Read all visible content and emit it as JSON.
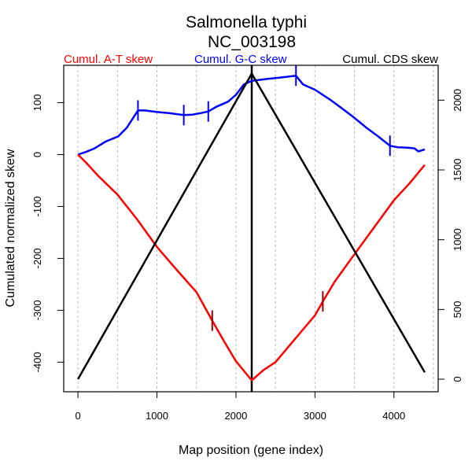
{
  "chart_data": {
    "type": "line",
    "title": "Salmonella typhi",
    "subtitle": "NC_003198",
    "xlabel": "Map position (gene index)",
    "ylabel": "Cumulated normalized skew",
    "ylabel_right": "",
    "xlim": [
      -180,
      4560
    ],
    "ylim": [
      -457,
      172
    ],
    "ylim_right": [
      -90,
      2250
    ],
    "x_ticks": [
      0,
      1000,
      2000,
      3000,
      4000
    ],
    "x_tick_labels": [
      "0",
      "1000",
      "2000",
      "3000",
      "4000"
    ],
    "y_ticks": [
      100,
      0,
      -100,
      -200,
      -300,
      -400
    ],
    "y_tick_labels": [
      "100",
      "0",
      "-100",
      "-200",
      "-300",
      "-400"
    ],
    "y_right_ticks": [
      0,
      500,
      1000,
      1500,
      2000
    ],
    "y_right_tick_labels": [
      "0",
      "500",
      "1000",
      "1500",
      "2000"
    ],
    "x_gridlines": [
      0,
      500,
      1000,
      1500,
      2000,
      2500,
      3000,
      3500,
      4000,
      4500
    ],
    "grid": "vertical dotted",
    "origin_line_x": 2200,
    "legend": [
      {
        "label": "Cumul. A-T skew",
        "color": "#ff0000",
        "position": "top-left"
      },
      {
        "label": "Cumul. G-C skew",
        "color": "#0000ff",
        "position": "top-center"
      },
      {
        "label": "Cumul. CDS skew",
        "color": "#000000",
        "position": "top-right"
      }
    ],
    "series": [
      {
        "name": "Cumul. G-C skew",
        "axis": "left",
        "color": "#0000ff",
        "x": [
          0,
          100,
          210,
          350,
          510,
          620,
          760,
          850,
          1000,
          1150,
          1340,
          1450,
          1560,
          1650,
          1750,
          1900,
          2000,
          2100,
          2200,
          2300,
          2400,
          2550,
          2760,
          2850,
          3000,
          3200,
          3350,
          3490,
          3650,
          3800,
          3950,
          4050,
          4190,
          4260,
          4310,
          4390
        ],
        "y": [
          0,
          5,
          12,
          25,
          35,
          52,
          85,
          85,
          82,
          80,
          76,
          77,
          80,
          83,
          92,
          102,
          115,
          135,
          142,
          144,
          146,
          148,
          152,
          135,
          125,
          105,
          88,
          72,
          52,
          35,
          17,
          14,
          13,
          12,
          6,
          10
        ]
      },
      {
        "name": "Cumul. A-T skew",
        "axis": "left",
        "color": "#ff0000",
        "x": [
          0,
          100,
          250,
          500,
          750,
          1000,
          1250,
          1500,
          1700,
          1850,
          2000,
          2200,
          2350,
          2500,
          2750,
          3000,
          3100,
          3250,
          3500,
          3750,
          4000,
          4200,
          4390
        ],
        "y": [
          0,
          -15,
          -40,
          -77,
          -125,
          -178,
          -222,
          -265,
          -320,
          -360,
          -398,
          -435,
          -415,
          -400,
          -355,
          -310,
          -283,
          -245,
          -192,
          -140,
          -88,
          -55,
          -20
        ]
      },
      {
        "name": "Cumul. CDS skew",
        "axis": "right",
        "color": "#000000",
        "x": [
          0,
          2200,
          4390
        ],
        "y": [
          0,
          2190,
          50
        ]
      }
    ],
    "markers": [
      {
        "series": "Cumul. G-C skew",
        "x": 760,
        "y": 85
      },
      {
        "series": "Cumul. G-C skew",
        "x": 1340,
        "y": 76
      },
      {
        "series": "Cumul. G-C skew",
        "x": 1650,
        "y": 83
      },
      {
        "series": "Cumul. G-C skew",
        "x": 2760,
        "y": 152
      },
      {
        "series": "Cumul. G-C skew",
        "x": 3950,
        "y": 17
      },
      {
        "series": "Cumul. A-T skew",
        "x": 1700,
        "y": -320
      },
      {
        "series": "Cumul. A-T skew",
        "x": 3100,
        "y": -283
      }
    ]
  }
}
